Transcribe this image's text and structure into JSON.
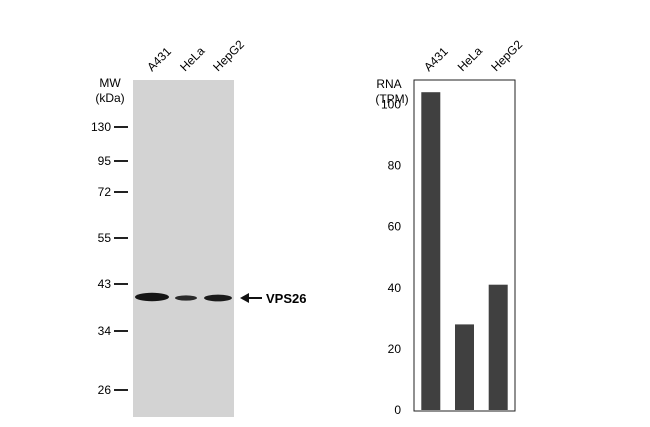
{
  "blot": {
    "lanes": [
      "A431",
      "HeLa",
      "HepG2"
    ],
    "mw_label": "MW",
    "kda_label": "(kDa)",
    "markers": [
      "130",
      "95",
      "72",
      "55",
      "43",
      "34",
      "26"
    ],
    "band_label": "VPS26",
    "band_marker": "43"
  },
  "chart_data": {
    "type": "bar",
    "categories": [
      "A431",
      "HeLa",
      "HepG2"
    ],
    "values": [
      104,
      28,
      41
    ],
    "ylabel": "RNA",
    "ylabel_unit": "(TPM)",
    "yticks": [
      0,
      20,
      40,
      60,
      80,
      100
    ],
    "ylim": [
      0,
      108
    ],
    "bar_color": "#404040"
  }
}
